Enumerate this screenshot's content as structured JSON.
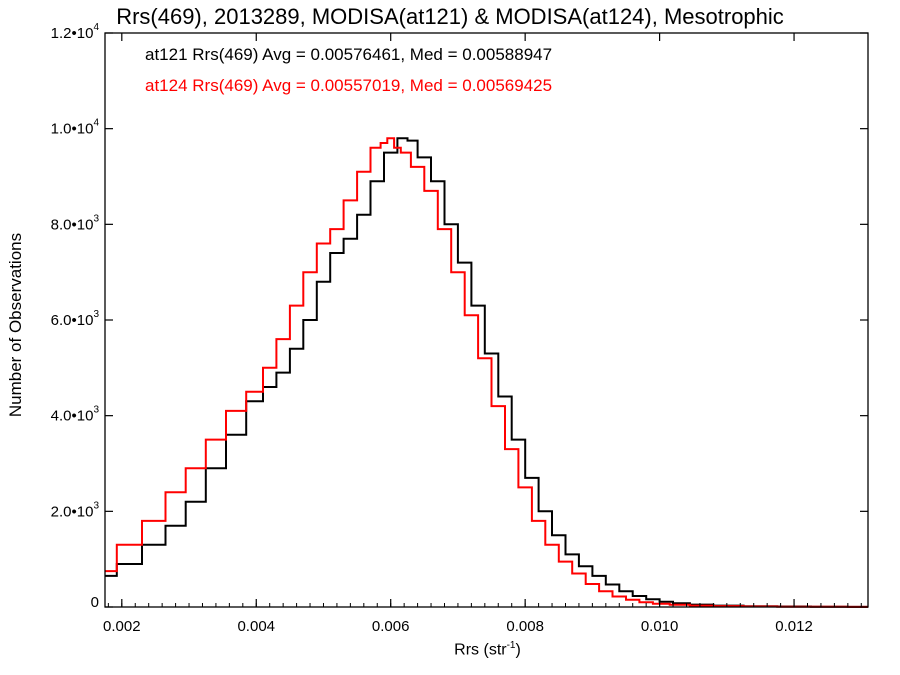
{
  "chart_data": {
    "type": "line",
    "title": "Rrs(469), 2013289, MODISA(at121) & MODISA(at124), Mesotrophic",
    "xlabel_base": "Rrs (str",
    "xlabel_sup": "-1",
    "xlabel_tail": ")",
    "ylabel": "Number of Observations",
    "xlim": [
      0.00175,
      0.0131
    ],
    "ylim": [
      0,
      12000
    ],
    "x_ticks": [
      0.002,
      0.004,
      0.006,
      0.008,
      0.01,
      0.012
    ],
    "x_tick_labels": [
      "0.002",
      "0.004",
      "0.006",
      "0.008",
      "0.010",
      "0.012"
    ],
    "y_ticks": [
      0,
      2000,
      4000,
      6000,
      8000,
      10000,
      12000
    ],
    "y_tick_labels": [
      {
        "base": "0",
        "exp": ""
      },
      {
        "base": "2.0•10",
        "exp": "3"
      },
      {
        "base": "4.0•10",
        "exp": "3"
      },
      {
        "base": "6.0•10",
        "exp": "3"
      },
      {
        "base": "8.0•10",
        "exp": "3"
      },
      {
        "base": "1.0•10",
        "exp": "4"
      },
      {
        "base": "1.2•10",
        "exp": "4"
      }
    ],
    "annotations": [
      {
        "text": "at121 Rrs(469) Avg = 0.00576461, Med = 0.00588947",
        "color": "#000000"
      },
      {
        "text": "at124 Rrs(469) Avg = 0.00557019, Med = 0.00569425",
        "color": "#ff0000"
      }
    ],
    "series": [
      {
        "color": "#000000",
        "x": [
          0.00175,
          0.0021,
          0.0025,
          0.0028,
          0.0031,
          0.0034,
          0.0037,
          0.004,
          0.0042,
          0.0044,
          0.0046,
          0.0048,
          0.005,
          0.0052,
          0.0054,
          0.0056,
          0.0058,
          0.006,
          0.0062,
          0.0063,
          0.0065,
          0.0067,
          0.0069,
          0.0071,
          0.0073,
          0.0075,
          0.0077,
          0.0079,
          0.0081,
          0.0083,
          0.0085,
          0.0087,
          0.0089,
          0.0091,
          0.0093,
          0.0095,
          0.0097,
          0.0099,
          0.0101,
          0.0103,
          0.0106,
          0.011,
          0.0115,
          0.012,
          0.0125,
          0.0131
        ],
        "y": [
          650,
          900,
          1300,
          1700,
          2200,
          2900,
          3600,
          4300,
          4600,
          4900,
          5400,
          6000,
          6800,
          7400,
          7700,
          8200,
          8900,
          9500,
          9800,
          9750,
          9400,
          8900,
          8000,
          7200,
          6300,
          5300,
          4400,
          3500,
          2700,
          2000,
          1500,
          1100,
          850,
          650,
          470,
          330,
          230,
          160,
          110,
          80,
          50,
          30,
          15,
          10,
          5,
          3
        ]
      },
      {
        "color": "#ff0000",
        "x": [
          0.00175,
          0.0021,
          0.0025,
          0.0028,
          0.0031,
          0.0034,
          0.0037,
          0.004,
          0.0042,
          0.0044,
          0.0046,
          0.0048,
          0.005,
          0.0052,
          0.0054,
          0.0056,
          0.0058,
          0.0059,
          0.006,
          0.0061,
          0.0062,
          0.0064,
          0.0066,
          0.0068,
          0.007,
          0.0072,
          0.0074,
          0.0076,
          0.0078,
          0.008,
          0.0082,
          0.0084,
          0.0086,
          0.0088,
          0.009,
          0.0092,
          0.0094,
          0.0096,
          0.0098,
          0.01,
          0.0103,
          0.0106,
          0.011,
          0.0115,
          0.012,
          0.0125,
          0.0131
        ],
        "y": [
          750,
          1300,
          1800,
          2400,
          2900,
          3500,
          4100,
          4500,
          5000,
          5600,
          6300,
          7000,
          7600,
          7900,
          8500,
          9100,
          9600,
          9700,
          9800,
          9600,
          9500,
          9200,
          8700,
          7900,
          7000,
          6100,
          5200,
          4200,
          3300,
          2500,
          1800,
          1300,
          950,
          700,
          480,
          330,
          220,
          150,
          100,
          70,
          45,
          30,
          18,
          10,
          6,
          4,
          2
        ]
      }
    ]
  }
}
